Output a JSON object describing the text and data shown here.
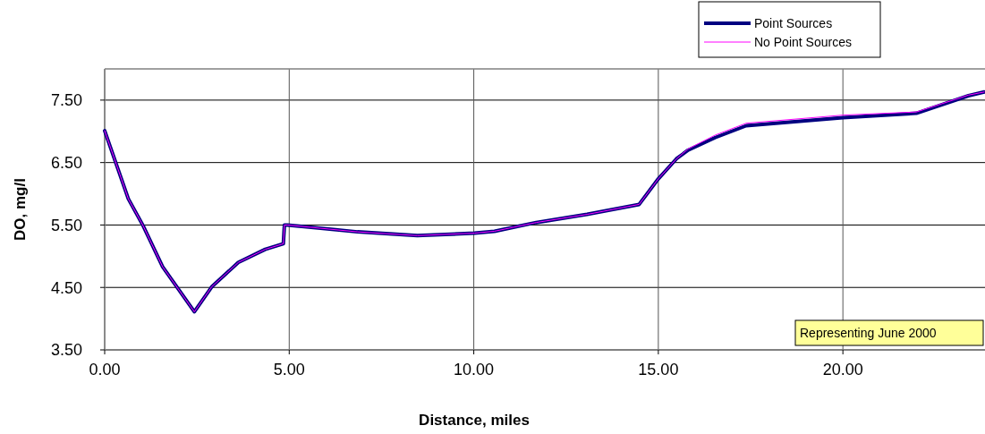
{
  "chart_data": {
    "type": "line",
    "xlabel": "Distance, miles",
    "ylabel": "DO, mg/l",
    "xlim": [
      0,
      23.85
    ],
    "ylim": [
      3.5,
      8.0
    ],
    "xticks": [
      {
        "value": 0,
        "label": "0.00"
      },
      {
        "value": 5,
        "label": "5.00"
      },
      {
        "value": 10,
        "label": "10.00"
      },
      {
        "value": 15,
        "label": "15.00"
      },
      {
        "value": 20,
        "label": "20.00"
      }
    ],
    "yticks": [
      {
        "value": 3.5,
        "label": "3.50"
      },
      {
        "value": 4.5,
        "label": "4.50"
      },
      {
        "value": 5.5,
        "label": "5.50"
      },
      {
        "value": 6.5,
        "label": "6.50"
      },
      {
        "value": 7.5,
        "label": "7.50"
      }
    ],
    "grid": true,
    "legend": "top right",
    "marker": "none",
    "line_style": "solid",
    "annotations": [
      "Representing June 2000"
    ],
    "series": [
      {
        "name": "Point Sources",
        "color": "#000080",
        "x": [
          0,
          0.64,
          1.04,
          1.57,
          2.43,
          2.9,
          3.62,
          4.35,
          4.84,
          4.87,
          4.95,
          6.85,
          8.47,
          10.02,
          10.56,
          11.69,
          13.07,
          14.48,
          15.0,
          15.49,
          15.81,
          16.54,
          17.38,
          20.0,
          21.99,
          23.4,
          23.83
        ],
        "values": [
          7.01,
          5.92,
          5.49,
          4.83,
          4.11,
          4.51,
          4.9,
          5.11,
          5.2,
          5.5,
          5.5,
          5.39,
          5.33,
          5.37,
          5.4,
          5.54,
          5.67,
          5.83,
          6.24,
          6.56,
          6.7,
          6.9,
          7.09,
          7.22,
          7.29,
          7.57,
          7.63
        ]
      },
      {
        "name": "No Point Sources",
        "color": "#ff00ff",
        "x": [
          0,
          0.64,
          1.04,
          1.57,
          2.43,
          2.9,
          3.62,
          4.35,
          4.84,
          4.87,
          4.95,
          6.85,
          8.47,
          10.02,
          10.56,
          11.69,
          13.07,
          14.48,
          15.0,
          15.49,
          15.81,
          16.54,
          17.38,
          20.0,
          21.99,
          23.4,
          23.83
        ],
        "values": [
          7.01,
          5.92,
          5.49,
          4.83,
          4.11,
          4.51,
          4.9,
          5.11,
          5.2,
          5.5,
          5.5,
          5.39,
          5.33,
          5.37,
          5.4,
          5.54,
          5.67,
          5.83,
          6.24,
          6.56,
          6.72,
          6.94,
          7.13,
          7.26,
          7.31,
          7.58,
          7.63
        ]
      }
    ]
  }
}
